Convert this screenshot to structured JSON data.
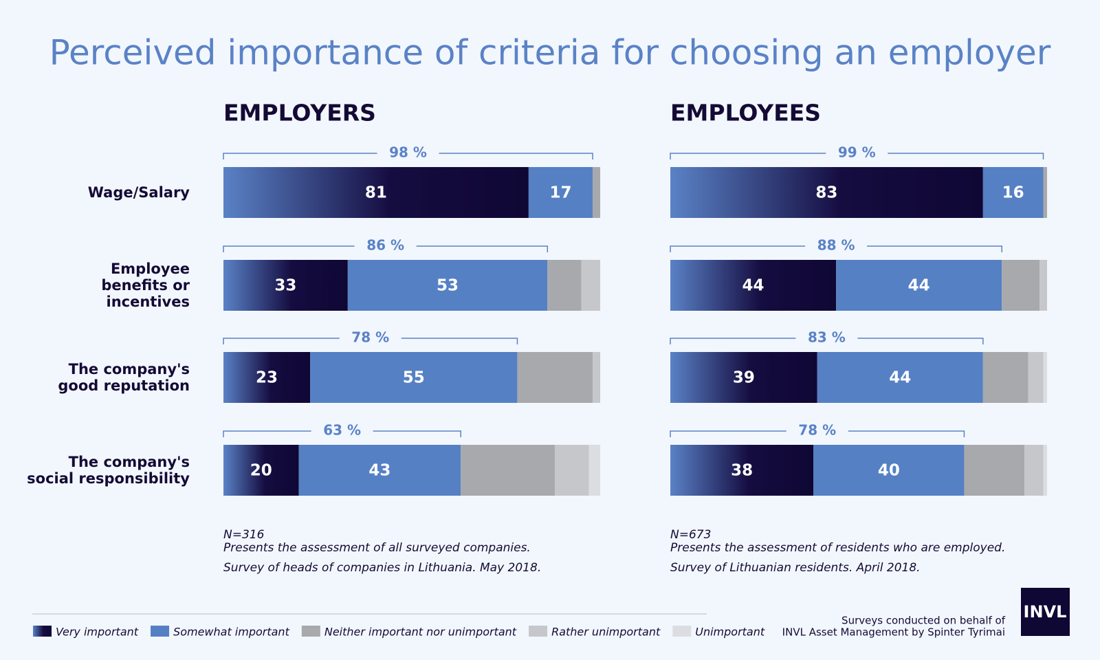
{
  "title": "Perceived importance of criteria for choosing an employer",
  "legend": [
    {
      "name": "Very important",
      "color": "#0f0734"
    },
    {
      "name": "Somewhat important",
      "color": "#5580c4"
    },
    {
      "name": "Neither important nor unimportant",
      "color": "#a8a9ad"
    },
    {
      "name": "Rather unimportant",
      "color": "#c6c7ca"
    },
    {
      "name": "Unimportant",
      "color": "#dcdde0"
    }
  ],
  "categories": [
    "Wage/Salary",
    "Employee\nbenefits or\nincentives",
    "The company's\ngood reputation",
    "The company's\nsocial responsibility"
  ],
  "chart_data": [
    {
      "type": "bar",
      "title": "EMPLOYERS",
      "xlim": [
        0,
        100
      ],
      "series": [
        {
          "values": [
            81,
            33,
            23,
            20
          ]
        },
        {
          "values": [
            17,
            53,
            55,
            43
          ]
        },
        {
          "values": [
            2,
            9,
            20,
            25
          ]
        },
        {
          "values": [
            0,
            5,
            2,
            9
          ]
        },
        {
          "values": [
            0,
            0,
            0,
            3
          ]
        }
      ],
      "totals": [
        98,
        86,
        78,
        63
      ],
      "total_labels": [
        "98 %",
        "86 %",
        "78 %",
        "63 %"
      ],
      "notes": [
        "N=316",
        "Presents the assessment of all surveyed companies.",
        "Survey of heads of companies in Lithuania. May 2018."
      ]
    },
    {
      "type": "bar",
      "title": "EMPLOYEES",
      "xlim": [
        0,
        100
      ],
      "series": [
        {
          "values": [
            83,
            44,
            39,
            38
          ]
        },
        {
          "values": [
            16,
            44,
            44,
            40
          ]
        },
        {
          "values": [
            1,
            10,
            12,
            16
          ]
        },
        {
          "values": [
            0,
            2,
            4,
            5
          ]
        },
        {
          "values": [
            0,
            0,
            1,
            1
          ]
        }
      ],
      "totals": [
        99,
        88,
        83,
        78
      ],
      "total_labels": [
        "99 %",
        "88 %",
        "83 %",
        "78 %"
      ],
      "notes": [
        "N=673",
        "Presents the assessment of residents who are employed.",
        "Survey of Lithuanian residents. April 2018."
      ]
    }
  ],
  "footer": [
    "Surveys conducted on behalf of",
    "INVL Asset Management by Spinter Tyrimai"
  ],
  "logo": "INVL"
}
